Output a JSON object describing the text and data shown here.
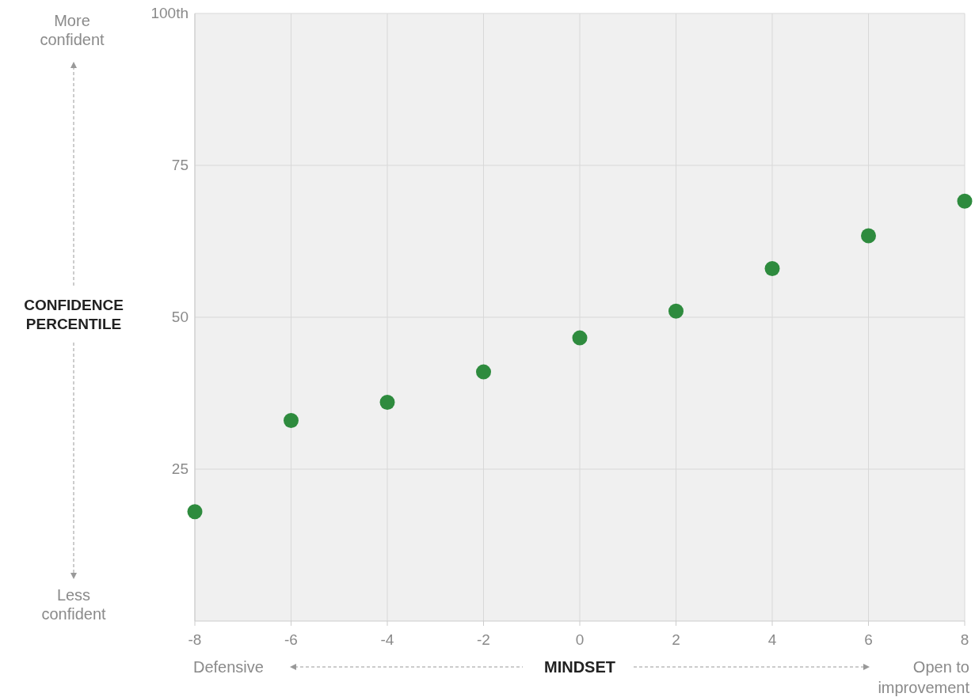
{
  "chart_data": {
    "type": "scatter",
    "xlabel": "MINDSET",
    "ylabel": "CONFIDENCE PERCENTILE",
    "x": [
      -8,
      -6,
      -4,
      -2,
      0,
      2,
      4,
      6,
      8
    ],
    "series": [
      {
        "color": "#2e8b3e",
        "values": [
          18,
          33,
          36,
          41,
          46.6,
          51,
          58,
          63.4,
          69.1
        ]
      }
    ],
    "xlim": [
      -8,
      8
    ],
    "xticks": [
      -8,
      -6,
      -4,
      -2,
      0,
      2,
      4,
      6,
      8
    ],
    "ylim": [
      0,
      100
    ],
    "yticks": [
      25,
      50,
      75,
      {
        "value": 100,
        "label": "100th"
      }
    ],
    "grid": true,
    "marker": "circle",
    "annotations": [
      "More confident",
      "Less confident",
      "Defensive",
      "Open to improvement"
    ]
  }
}
